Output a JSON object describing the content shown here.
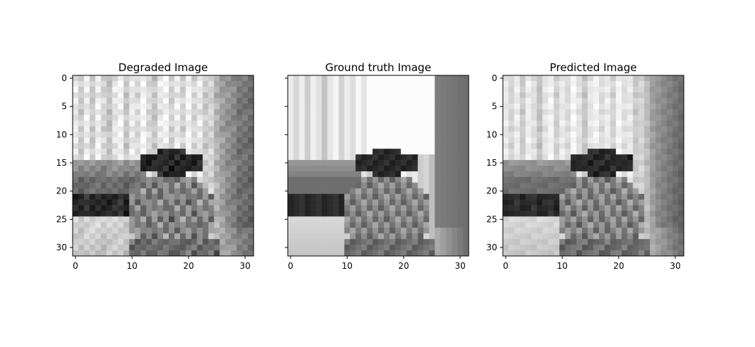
{
  "chart_data": [
    {
      "type": "heatmap",
      "title": "Degraded Image",
      "xlabel": "",
      "ylabel": "",
      "xlim": [
        -0.5,
        31.5
      ],
      "ylim": [
        31.5,
        -0.5
      ],
      "xticks": [
        "0",
        "10",
        "20",
        "30"
      ],
      "yticks": [
        "0",
        "5",
        "10",
        "15",
        "20",
        "25",
        "30"
      ],
      "colormap": "gray",
      "grid": false
    },
    {
      "type": "heatmap",
      "title": "Ground truth Image",
      "xlabel": "",
      "ylabel": "",
      "xlim": [
        -0.5,
        31.5
      ],
      "ylim": [
        31.5,
        -0.5
      ],
      "xticks": [
        "0",
        "10",
        "20",
        "30"
      ],
      "yticks": [],
      "colormap": "gray",
      "grid": false
    },
    {
      "type": "heatmap",
      "title": "Predicted Image",
      "xlabel": "",
      "ylabel": "",
      "xlim": [
        -0.5,
        31.5
      ],
      "ylim": [
        31.5,
        -0.5
      ],
      "xticks": [
        "0",
        "10",
        "20",
        "30"
      ],
      "yticks": [
        "0",
        "5",
        "10",
        "15",
        "20",
        "25",
        "30"
      ],
      "colormap": "gray",
      "grid": false
    }
  ]
}
